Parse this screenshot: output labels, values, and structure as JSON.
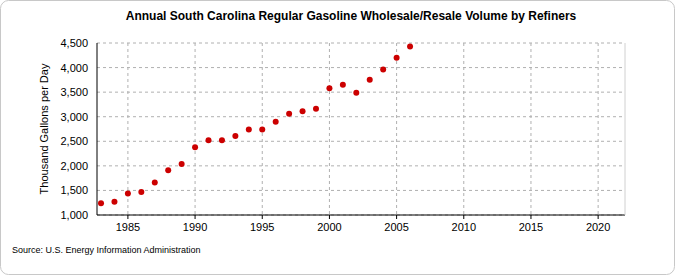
{
  "chart_data": {
    "type": "scatter",
    "title": "Annual South Carolina Regular Gasoline Wholesale/Resale Volume by Refiners",
    "y_label": "Thousand Gallons per Day",
    "source": "Source: U.S. Energy Information Administration",
    "x": [
      1983,
      1984,
      1985,
      1986,
      1987,
      1988,
      1989,
      1990,
      1991,
      1992,
      1993,
      1994,
      1995,
      1996,
      1997,
      1998,
      1999,
      2000,
      2001,
      2002,
      2003,
      2004,
      2005,
      2006
    ],
    "values": [
      1240,
      1270,
      1440,
      1470,
      1660,
      1910,
      2040,
      2380,
      2520,
      2520,
      2610,
      2740,
      2740,
      2900,
      3060,
      3110,
      3160,
      3580,
      3650,
      3490,
      3750,
      3960,
      4200,
      4430
    ],
    "color": "#cc0000",
    "marker": "circle",
    "xlim": [
      1982.7,
      2022
    ],
    "xticks": [
      1985,
      1990,
      1995,
      2000,
      2005,
      2010,
      2015,
      2020
    ],
    "ylim": [
      1000,
      4500
    ],
    "yticks": [
      {
        "value": 1000,
        "label": "1,000"
      },
      {
        "value": 1500,
        "label": "1,500"
      },
      {
        "value": 2000,
        "label": "2,000"
      },
      {
        "value": 2500,
        "label": "2,500"
      },
      {
        "value": 3000,
        "label": "3,000"
      },
      {
        "value": 3500,
        "label": "3,500"
      },
      {
        "value": 4000,
        "label": "4,000"
      },
      {
        "value": 4500,
        "label": "4,500"
      }
    ],
    "grid": true
  }
}
